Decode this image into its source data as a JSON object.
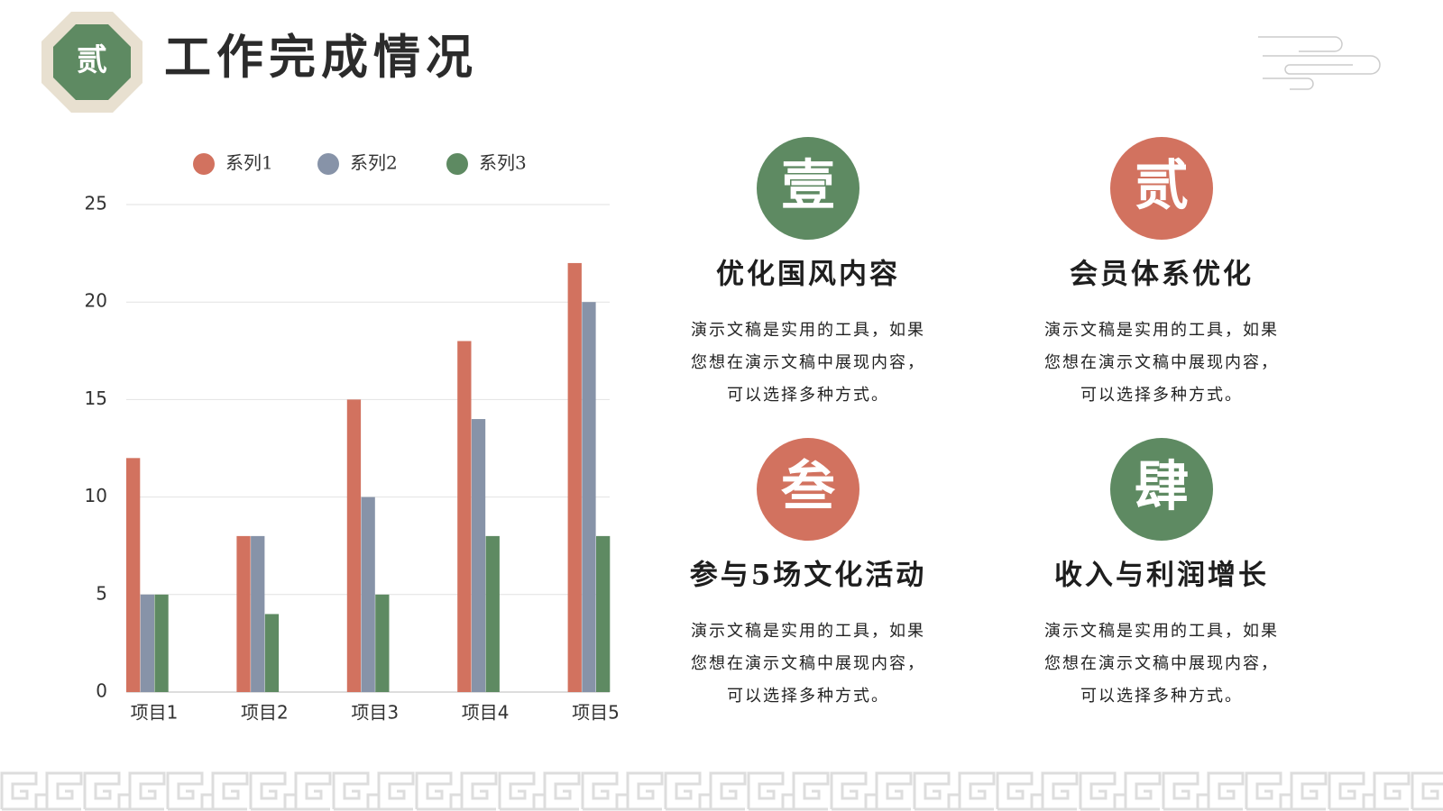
{
  "header": {
    "badge": "贰",
    "title": "工作完成情况"
  },
  "chart_data": {
    "type": "bar",
    "categories": [
      "项目1",
      "项目2",
      "项目3",
      "项目4",
      "项目5"
    ],
    "series": [
      {
        "name": "系列1",
        "color": "#d2725f",
        "values": [
          12,
          8,
          15,
          18,
          22
        ]
      },
      {
        "name": "系列2",
        "color": "#8793a8",
        "values": [
          5,
          8,
          10,
          14,
          20
        ]
      },
      {
        "name": "系列3",
        "color": "#5e8a62",
        "values": [
          5,
          4,
          5,
          8,
          8
        ]
      }
    ],
    "ylim": [
      0,
      25
    ],
    "yticks": [
      0,
      5,
      10,
      15,
      20,
      25
    ],
    "grid": true,
    "legend": "top"
  },
  "cards": [
    {
      "badge": "壹",
      "color": "#5e8a62",
      "heading": "优化国风内容",
      "lines": [
        "演示文稿是实用的工具，如果",
        "您想在演示文稿中展现内容，",
        "可以选择多种方式。"
      ]
    },
    {
      "badge": "贰",
      "color": "#d2725f",
      "heading": "会员体系优化",
      "lines": [
        "演示文稿是实用的工具，如果",
        "您想在演示文稿中展现内容，",
        "可以选择多种方式。"
      ]
    },
    {
      "badge": "叁",
      "color": "#d2725f",
      "heading": "参与5场文化活动",
      "lines": [
        "演示文稿是实用的工具，如果",
        "您想在演示文稿中展现内容，",
        "可以选择多种方式。"
      ]
    },
    {
      "badge": "肆",
      "color": "#5e8a62",
      "heading": "收入与利润增长",
      "lines": [
        "演示文稿是实用的工具，如果",
        "您想在演示文稿中展现内容，",
        "可以选择多种方式。"
      ]
    }
  ]
}
